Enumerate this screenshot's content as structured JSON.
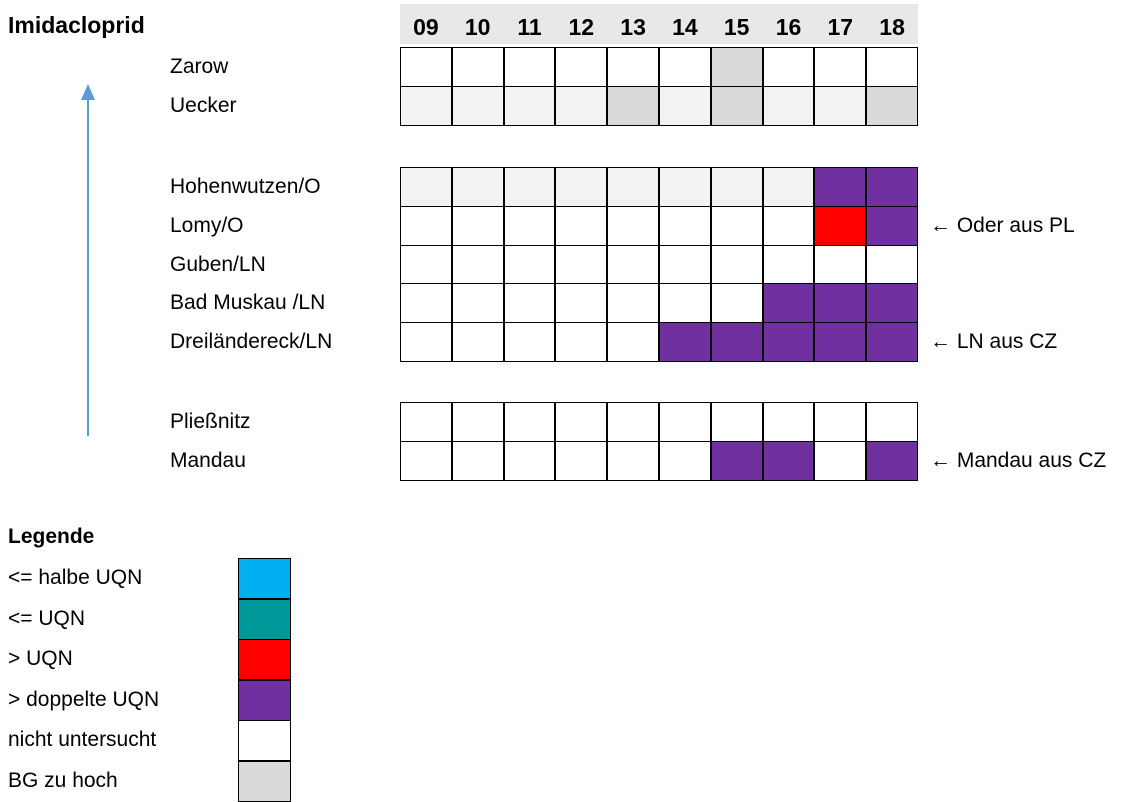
{
  "chart_data": {
    "type": "table",
    "title": "Imidacloprid",
    "years": [
      "09",
      "10",
      "11",
      "12",
      "13",
      "14",
      "15",
      "16",
      "17",
      "18"
    ],
    "groups": [
      {
        "rows": [
          {
            "station": "Zarow",
            "cells": [
              "nu",
              "nu",
              "nu",
              "nu",
              "nu",
              "nu",
              "bg",
              "nu",
              "nu",
              "nu"
            ],
            "note": ""
          },
          {
            "station": "Uecker",
            "cells": [
              "lbg",
              "lbg",
              "lbg",
              "lbg",
              "bg",
              "lbg",
              "bg",
              "lbg",
              "lbg",
              "bg"
            ],
            "note": ""
          }
        ]
      },
      {
        "rows": [
          {
            "station": "Hohenwutzen/O",
            "cells": [
              "lbg",
              "lbg",
              "lbg",
              "lbg",
              "lbg",
              "lbg",
              "lbg",
              "lbg",
              "dbl",
              "dbl"
            ],
            "note": ""
          },
          {
            "station": "Lomy/O",
            "cells": [
              "nu",
              "nu",
              "nu",
              "nu",
              "nu",
              "nu",
              "nu",
              "nu",
              "gt",
              "dbl"
            ],
            "note": "← Oder aus PL"
          },
          {
            "station": "Guben/LN",
            "cells": [
              "nu",
              "nu",
              "nu",
              "nu",
              "nu",
              "nu",
              "nu",
              "nu",
              "nu",
              "nu"
            ],
            "note": ""
          },
          {
            "station": "Bad Muskau /LN",
            "cells": [
              "nu",
              "nu",
              "nu",
              "nu",
              "nu",
              "nu",
              "nu",
              "dbl",
              "dbl",
              "dbl"
            ],
            "note": ""
          },
          {
            "station": "Dreiländereck/LN",
            "cells": [
              "nu",
              "nu",
              "nu",
              "nu",
              "nu",
              "dbl",
              "dbl",
              "dbl",
              "dbl",
              "dbl"
            ],
            "note": "← LN aus CZ"
          }
        ]
      },
      {
        "rows": [
          {
            "station": "Pließnitz",
            "cells": [
              "nu",
              "nu",
              "nu",
              "nu",
              "nu",
              "nu",
              "nu",
              "nu",
              "nu",
              "nu"
            ],
            "note": ""
          },
          {
            "station": "Mandau",
            "cells": [
              "nu",
              "nu",
              "nu",
              "nu",
              "nu",
              "nu",
              "dbl",
              "dbl",
              "nu",
              "dbl"
            ],
            "note": "← Mandau aus CZ"
          }
        ]
      }
    ],
    "categories": {
      "half": "#00b0f0",
      "le": "#009999",
      "gt": "#ff0000",
      "dbl": "#7030a0",
      "nu": "#ffffff",
      "bg": "#d9d9d9",
      "lbg": "#f2f2f2"
    },
    "arrow_color": "#5b9bd5",
    "legend": {
      "title": "Legende",
      "items": [
        {
          "label": "<= halbe UQN",
          "color": "#00b0f0"
        },
        {
          "label": "<= UQN",
          "color": "#009999"
        },
        {
          "label": "> UQN",
          "color": "#ff0000"
        },
        {
          "label": "> doppelte UQN",
          "color": "#7030a0"
        },
        {
          "label": "nicht untersucht",
          "color": "#ffffff"
        },
        {
          "label": "BG zu hoch",
          "color": "#d9d9d9"
        }
      ]
    }
  }
}
